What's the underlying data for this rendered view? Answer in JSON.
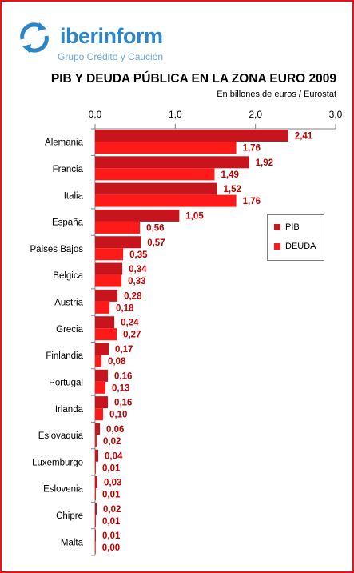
{
  "brand": {
    "name_part1": "iber",
    "name_part2": "inform",
    "tagline": "Grupo Crédito y Caución",
    "logo_icon": "circular-arrows-icon",
    "colors": {
      "primary": "#2a86c8",
      "light": "#6aa9d8"
    }
  },
  "chart_data": {
    "type": "bar",
    "orientation": "horizontal",
    "title": "PIB Y DEUDA PÚBLICA EN LA ZONA EURO 2009",
    "subtitle": "En billones de euros / Eurostat",
    "xlabel": "",
    "ylabel": "",
    "xlim": [
      0,
      3
    ],
    "x_ticks": [
      "0,0",
      "1,0",
      "2,0",
      "3,0"
    ],
    "x_tick_values": [
      0,
      1,
      2,
      3
    ],
    "grid": false,
    "legend_position": "right",
    "decimal_separator": ",",
    "categories": [
      "Alemania",
      "Francia",
      "Italia",
      "España",
      "Paises Bajos",
      "Belgica",
      "Austria",
      "Grecia",
      "Finlandia",
      "Portugal",
      "Irlanda",
      "Eslovaquia",
      "Luxemburgo",
      "Eslovenia",
      "Chipre",
      "Malta"
    ],
    "series": [
      {
        "name": "PIB",
        "color": "#c8141c",
        "values": [
          2.41,
          1.92,
          1.52,
          1.05,
          0.57,
          0.34,
          0.28,
          0.24,
          0.17,
          0.16,
          0.16,
          0.06,
          0.04,
          0.03,
          0.02,
          0.01
        ]
      },
      {
        "name": "DEUDA",
        "color": "#ff1a1a",
        "values": [
          1.76,
          1.49,
          1.76,
          0.56,
          0.35,
          0.33,
          0.18,
          0.27,
          0.08,
          0.13,
          0.1,
          0.02,
          0.01,
          0.01,
          0.01,
          0.0
        ]
      }
    ],
    "label_color": "#c00000"
  }
}
